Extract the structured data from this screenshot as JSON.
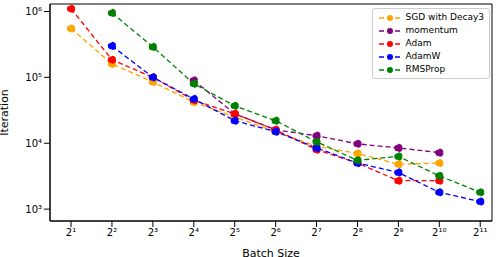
{
  "chart_data": {
    "type": "line",
    "x_label": "Batch Size",
    "y_label": "Iteration",
    "log": true,
    "grid": false,
    "legend": "upper right",
    "x": [
      2,
      4,
      8,
      16,
      32,
      64,
      128,
      256,
      512,
      1024,
      2048
    ],
    "xlim": [
      1.4,
      2500
    ],
    "xticks": [
      {
        "value": 2,
        "label": "2¹"
      },
      {
        "value": 4,
        "label": "2²"
      },
      {
        "value": 8,
        "label": "2³"
      },
      {
        "value": 16,
        "label": "2⁴"
      },
      {
        "value": 32,
        "label": "2⁵"
      },
      {
        "value": 64,
        "label": "2⁶"
      },
      {
        "value": 128,
        "label": "2⁷"
      },
      {
        "value": 256,
        "label": "2⁸"
      },
      {
        "value": 512,
        "label": "2⁹"
      },
      {
        "value": 1024,
        "label": "2¹⁰"
      },
      {
        "value": 2048,
        "label": "2¹¹"
      }
    ],
    "ylim": [
      660,
      1300000
    ],
    "yticks": [
      {
        "value": 1000,
        "label": "10³"
      },
      {
        "value": 10000,
        "label": "10⁴"
      },
      {
        "value": 100000,
        "label": "10⁵"
      },
      {
        "value": 1000000,
        "label": "10⁶"
      }
    ],
    "series": [
      {
        "name": "SGD with Decay3",
        "color": "#ffa500",
        "marker": "o",
        "line_style": "dashed",
        "values": [
          550000,
          160000,
          85000,
          42000,
          25000,
          15000,
          9000,
          7000,
          4800,
          5000,
          null
        ]
      },
      {
        "name": "momentum",
        "color": "#800080",
        "marker": "o",
        "line_style": "dashed",
        "values": [
          null,
          null,
          null,
          90000,
          28000,
          16000,
          13000,
          9800,
          8500,
          7200,
          null
        ]
      },
      {
        "name": "Adam",
        "color": "#ff0000",
        "marker": "o",
        "line_style": "dashed",
        "values": [
          1100000,
          185000,
          100000,
          45000,
          28000,
          16000,
          8000,
          5000,
          2700,
          2700,
          null
        ]
      },
      {
        "name": "AdamW",
        "color": "#0000ff",
        "marker": "o",
        "line_style": "dashed",
        "values": [
          null,
          300000,
          100000,
          47000,
          22000,
          15000,
          8500,
          5000,
          3600,
          1800,
          1300
        ]
      },
      {
        "name": "RMSProp",
        "color": "#008000",
        "marker": "o",
        "line_style": "dashed",
        "values": [
          null,
          950000,
          290000,
          80000,
          37000,
          22000,
          10500,
          5500,
          6300,
          3200,
          1800
        ]
      }
    ]
  }
}
